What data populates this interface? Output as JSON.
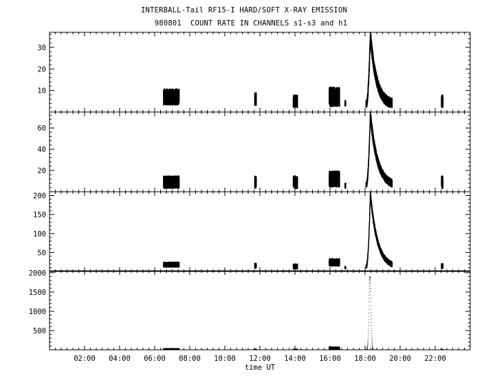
{
  "chart_data": {
    "type": "line",
    "title": "INTERBALL-Tail RF15-I HARD/SOFT X-RAY EMISSION",
    "subtitle": "980801  COUNT RATE IN CHANNELS s1-s3 and h1",
    "xlabel": "time UT",
    "xlim": [
      0,
      24
    ],
    "x_tick_labels": [
      "02:00",
      "04:00",
      "06:00",
      "08:00",
      "10:00",
      "12:00",
      "14:00",
      "16:00",
      "18:00",
      "20:00",
      "22:00"
    ],
    "x_ticks_hours": [
      2,
      4,
      6,
      8,
      10,
      12,
      14,
      16,
      18,
      20,
      22
    ],
    "panels": [
      {
        "channel": "s1",
        "ylim": [
          0,
          37
        ],
        "yticks": [
          10,
          20,
          30
        ],
        "ytick_labels": [
          "10",
          "20",
          "30"
        ],
        "segments": [
          {
            "start": 6.5,
            "end": 7.4,
            "baseline": 1,
            "level": 7,
            "noise": 2.5
          },
          {
            "start": 11.7,
            "end": 11.8,
            "baseline": 1,
            "level": 6,
            "noise": 2
          },
          {
            "start": 13.9,
            "end": 14.15,
            "baseline": 1,
            "level": 5,
            "noise": 2
          },
          {
            "start": 15.95,
            "end": 16.55,
            "baseline": 1,
            "level": 7,
            "noise": 3
          },
          {
            "start": 16.85,
            "end": 16.9,
            "baseline": 1,
            "level": 4,
            "noise": 1
          },
          {
            "start": 18.05,
            "end": 19.55,
            "baseline": 2,
            "level": 3,
            "noise": 2.5,
            "peak_time": 18.3,
            "peak": 33,
            "decay": 0.35
          },
          {
            "start": 22.35,
            "end": 22.45,
            "baseline": 1,
            "level": 5,
            "noise": 2
          }
        ]
      },
      {
        "channel": "s2",
        "ylim": [
          0,
          75
        ],
        "yticks": [
          20,
          40,
          60
        ],
        "ytick_labels": [
          "20",
          "40",
          "60"
        ],
        "segments": [
          {
            "start": 6.5,
            "end": 7.4,
            "baseline": 2,
            "level": 9,
            "noise": 4
          },
          {
            "start": 11.7,
            "end": 11.8,
            "baseline": 2,
            "level": 9,
            "noise": 4
          },
          {
            "start": 13.9,
            "end": 14.15,
            "baseline": 2,
            "level": 9,
            "noise": 4
          },
          {
            "start": 15.95,
            "end": 16.55,
            "baseline": 2,
            "level": 12,
            "noise": 5
          },
          {
            "start": 16.85,
            "end": 16.9,
            "baseline": 2,
            "level": 6,
            "noise": 2
          },
          {
            "start": 18.05,
            "end": 19.55,
            "baseline": 4,
            "level": 5,
            "noise": 4,
            "peak_time": 18.3,
            "peak": 68,
            "decay": 0.4
          },
          {
            "start": 22.35,
            "end": 22.45,
            "baseline": 2,
            "level": 9,
            "noise": 4
          }
        ]
      },
      {
        "channel": "s3",
        "ylim": [
          0,
          210
        ],
        "yticks": [
          50,
          100,
          150,
          200
        ],
        "ytick_labels": [
          "50",
          "100",
          "150",
          "200"
        ],
        "segments": [
          {
            "start": 6.5,
            "end": 7.4,
            "baseline": 5,
            "level": 18,
            "noise": 5
          },
          {
            "start": 11.7,
            "end": 11.8,
            "baseline": 5,
            "level": 15,
            "noise": 5
          },
          {
            "start": 13.9,
            "end": 14.15,
            "baseline": 5,
            "level": 13,
            "noise": 5
          },
          {
            "start": 15.95,
            "end": 16.55,
            "baseline": 5,
            "level": 24,
            "noise": 7
          },
          {
            "start": 16.85,
            "end": 16.9,
            "baseline": 5,
            "level": 10,
            "noise": 3
          },
          {
            "start": 18.05,
            "end": 19.55,
            "baseline": 8,
            "level": 10,
            "noise": 8,
            "peak_time": 18.3,
            "peak": 195,
            "decay": 0.4
          },
          {
            "start": 22.35,
            "end": 22.45,
            "baseline": 5,
            "level": 14,
            "noise": 5
          }
        ]
      },
      {
        "channel": "h1",
        "ylim": [
          0,
          2050
        ],
        "yticks": [
          500,
          1000,
          1500,
          2000
        ],
        "ytick_labels": [
          "500",
          "1000",
          "1500",
          "2000"
        ],
        "segments": [
          {
            "start": 6.5,
            "end": 7.4,
            "baseline": 5,
            "level": 20,
            "noise": 15
          },
          {
            "start": 11.7,
            "end": 11.8,
            "baseline": 5,
            "level": 15,
            "noise": 10
          },
          {
            "start": 13.9,
            "end": 14.15,
            "baseline": 5,
            "level": 15,
            "noise": 10
          },
          {
            "start": 15.95,
            "end": 16.55,
            "baseline": 5,
            "level": 40,
            "noise": 30
          },
          {
            "start": 18.05,
            "end": 19.55,
            "baseline": 10,
            "level": 0,
            "noise": 8,
            "peak_time": 18.28,
            "peak": 1900,
            "gauss_width": 0.08
          },
          {
            "start": 22.35,
            "end": 22.45,
            "baseline": 5,
            "level": 12,
            "noise": 8
          }
        ]
      }
    ]
  }
}
